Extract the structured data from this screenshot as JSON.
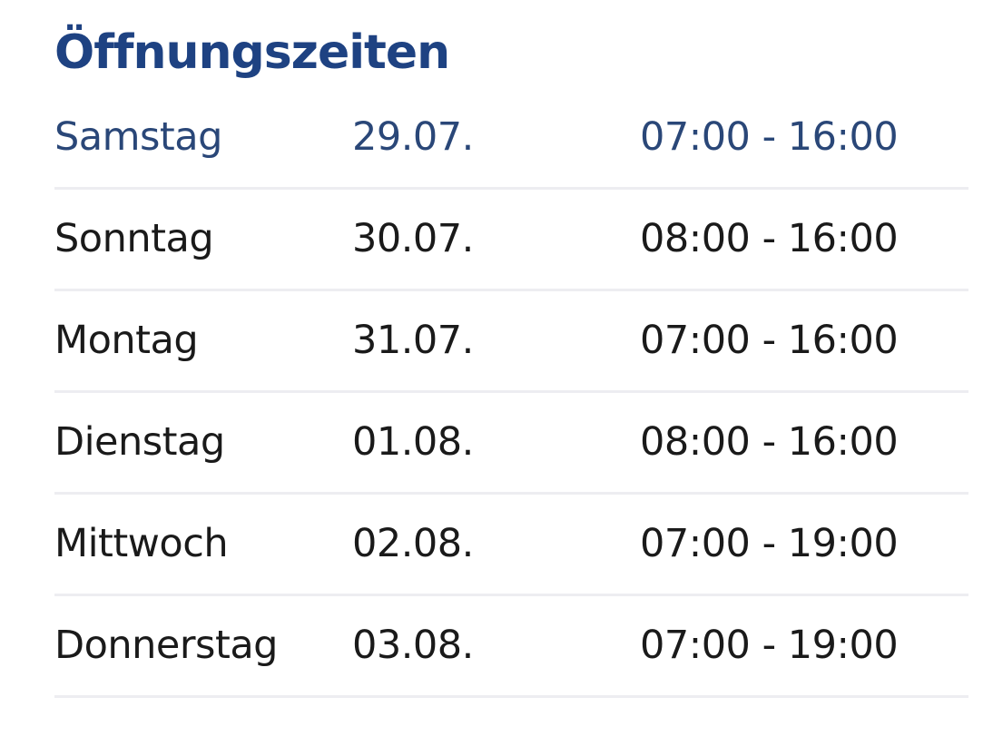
{
  "page": {
    "title": "Öffnungszeiten"
  },
  "colors": {
    "title": "#1e4282",
    "highlight": "#2a4778",
    "text": "#1a1a1a",
    "divider": "#ededf1",
    "background": "#ffffff"
  },
  "opening_hours": {
    "rows": [
      {
        "day": "Samstag",
        "date": "29.07.",
        "hours": "07:00 - 16:00",
        "highlighted": true
      },
      {
        "day": "Sonntag",
        "date": "30.07.",
        "hours": "08:00 - 16:00",
        "highlighted": false
      },
      {
        "day": "Montag",
        "date": "31.07.",
        "hours": "07:00 - 16:00",
        "highlighted": false
      },
      {
        "day": "Dienstag",
        "date": "01.08.",
        "hours": "08:00 - 16:00",
        "highlighted": false
      },
      {
        "day": "Mittwoch",
        "date": "02.08.",
        "hours": "07:00 - 19:00",
        "highlighted": false
      },
      {
        "day": "Donnerstag",
        "date": "03.08.",
        "hours": "07:00 - 19:00",
        "highlighted": false
      }
    ]
  }
}
